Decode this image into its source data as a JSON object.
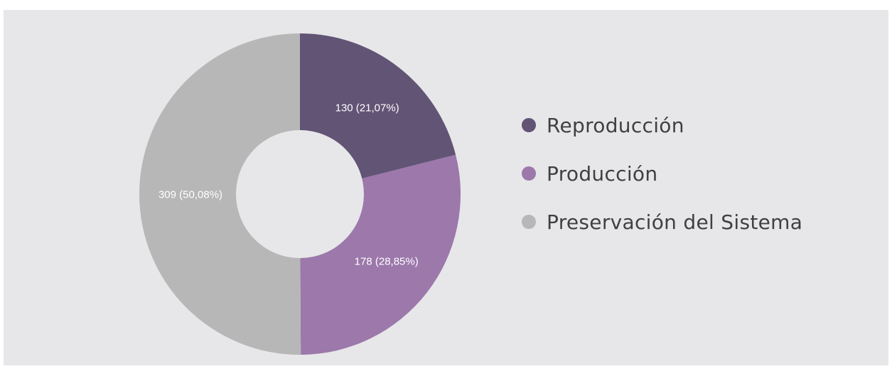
{
  "colors": {
    "background": "#e7e7e9",
    "hole": "#e7e7e9"
  },
  "chart_data": {
    "type": "pie",
    "variant": "donut",
    "categories": [
      "Reproducción",
      "Producción",
      "Preservación del Sistema"
    ],
    "values": [
      130,
      178,
      309
    ],
    "percentages": [
      21.07,
      28.85,
      50.08
    ],
    "labels": [
      "130 (21,07%)",
      "178 (28,85%)",
      "309 (50,08%)"
    ],
    "colors": [
      "#625475",
      "#9c78ab",
      "#b7b7b8"
    ],
    "legend_position": "right",
    "start_angle_deg": 0,
    "direction": "clockwise"
  },
  "legend": {
    "items": [
      {
        "label": "Reproducción",
        "color": "#625475"
      },
      {
        "label": "Producción",
        "color": "#9c78ab"
      },
      {
        "label": "Preservación del Sistema",
        "color": "#b7b7b8"
      }
    ]
  }
}
